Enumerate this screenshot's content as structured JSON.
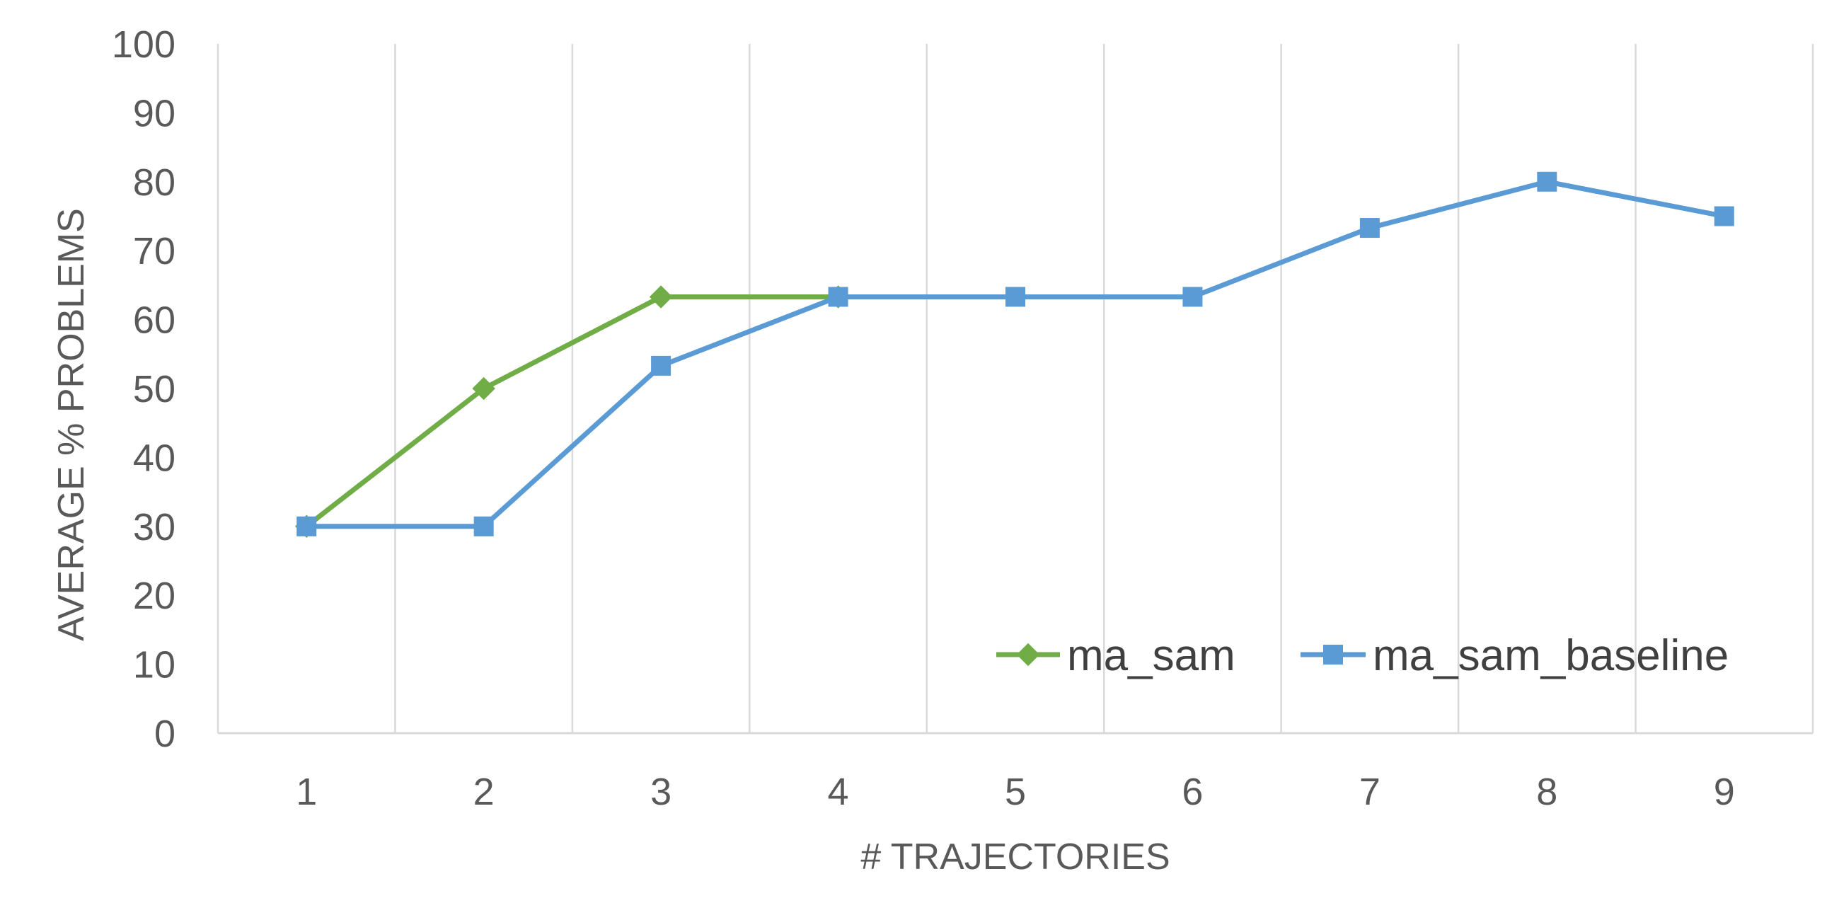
{
  "chart_data": {
    "type": "line",
    "title": "",
    "xlabel": "# TRAJECTORIES",
    "ylabel": "AVERAGE % PROBLEMS",
    "x": [
      1,
      2,
      3,
      4,
      5,
      6,
      7,
      8,
      9
    ],
    "x_tick_labels": [
      "1",
      "2",
      "3",
      "4",
      "5",
      "6",
      "7",
      "8",
      "9"
    ],
    "ylim": [
      0,
      100
    ],
    "y_ticks": [
      0,
      10,
      20,
      30,
      40,
      50,
      60,
      70,
      80,
      90,
      100
    ],
    "y_tick_labels": [
      "0",
      "10",
      "20",
      "30",
      "40",
      "50",
      "60",
      "70",
      "80",
      "90",
      "100"
    ],
    "grid": "vertical",
    "legend_position": "bottom-right",
    "series": [
      {
        "name": "ma_sam",
        "color": "#70AD47",
        "marker": "diamond",
        "x": [
          1,
          2,
          3,
          4
        ],
        "values": [
          30,
          50,
          63.3,
          63.3
        ]
      },
      {
        "name": "ma_sam_baseline",
        "color": "#5B9BD5",
        "marker": "square",
        "x": [
          1,
          2,
          3,
          4,
          5,
          6,
          7,
          8,
          9
        ],
        "values": [
          30,
          30,
          53.3,
          63.3,
          63.3,
          63.3,
          73.3,
          80,
          75
        ]
      }
    ]
  }
}
